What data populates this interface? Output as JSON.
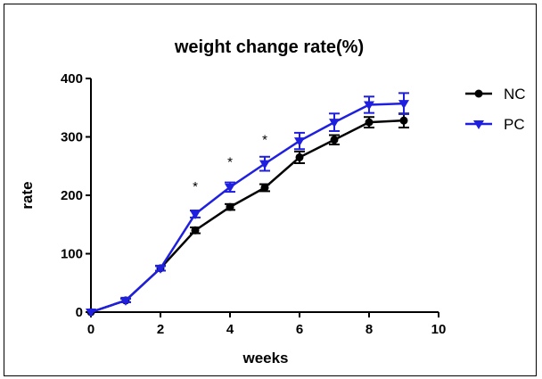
{
  "chart_data": {
    "type": "line",
    "title": "weight change rate(%)",
    "xlabel": "weeks",
    "ylabel": "rate",
    "xlim": [
      0,
      10
    ],
    "ylim": [
      0,
      400
    ],
    "xticks": [
      0,
      2,
      4,
      6,
      8,
      10
    ],
    "yticks": [
      0,
      100,
      200,
      300,
      400
    ],
    "grid": false,
    "legend_position": "top-right",
    "series": [
      {
        "name": "NC",
        "color": "#000000",
        "marker": "circle",
        "x": [
          0,
          1,
          2,
          3,
          4,
          5,
          6,
          7,
          8,
          9
        ],
        "y": [
          0,
          20,
          75,
          140,
          180,
          213,
          265,
          295,
          325,
          328
        ],
        "error": [
          0,
          3,
          4,
          5,
          5,
          6,
          10,
          8,
          9,
          12
        ]
      },
      {
        "name": "PC",
        "color": "#1f1fe0",
        "marker": "triangle-down",
        "x": [
          0,
          1,
          2,
          3,
          4,
          5,
          6,
          7,
          8,
          9
        ],
        "y": [
          0,
          20,
          75,
          168,
          214,
          254,
          293,
          325,
          355,
          357
        ],
        "error": [
          0,
          3,
          4,
          6,
          8,
          12,
          14,
          15,
          14,
          18
        ]
      }
    ],
    "annotations": [
      {
        "text": "*",
        "x": 3,
        "y": 220
      },
      {
        "text": "*",
        "x": 4,
        "y": 262
      },
      {
        "text": "*",
        "x": 5,
        "y": 300
      }
    ]
  }
}
